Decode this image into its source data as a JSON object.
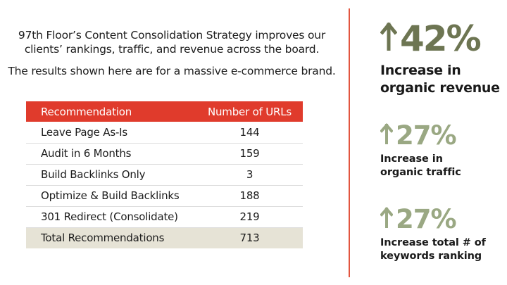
{
  "intro": {
    "line1": "97th Floor’s Content Consolidation Strategy improves our clients’ rankings, traffic, and revenue across the board.",
    "line2": "The results shown here are for a massive e-commerce brand."
  },
  "table": {
    "headers": [
      "Recommendation",
      "Number of URLs"
    ],
    "rows": [
      [
        "Leave Page As-Is",
        "144"
      ],
      [
        "Audit in 6 Months",
        "159"
      ],
      [
        "Build Backlinks Only",
        "3"
      ],
      [
        "Optimize & Build Backlinks",
        "188"
      ],
      [
        "301 Redirect (Consolidate)",
        "219"
      ]
    ],
    "total": [
      "Total Recommendations",
      "713"
    ]
  },
  "stats": [
    {
      "value": "42%",
      "label_line1": "Increase in",
      "label_line2": "organic revenue",
      "icon": "arrow-up-icon"
    },
    {
      "value": "27%",
      "label_line1": "Increase in",
      "label_line2": "organic traffic",
      "icon": "arrow-up-icon"
    },
    {
      "value": "27%",
      "label_line1": "Increase total # of",
      "label_line2": "keywords ranking",
      "icon": "arrow-up-icon"
    }
  ],
  "colors": {
    "header_red": "#e03b2c",
    "divider": "#e2553f",
    "primary_stat": "#6d7552",
    "secondary_stat": "#9aa883",
    "total_row_bg": "#e6e3d6"
  }
}
